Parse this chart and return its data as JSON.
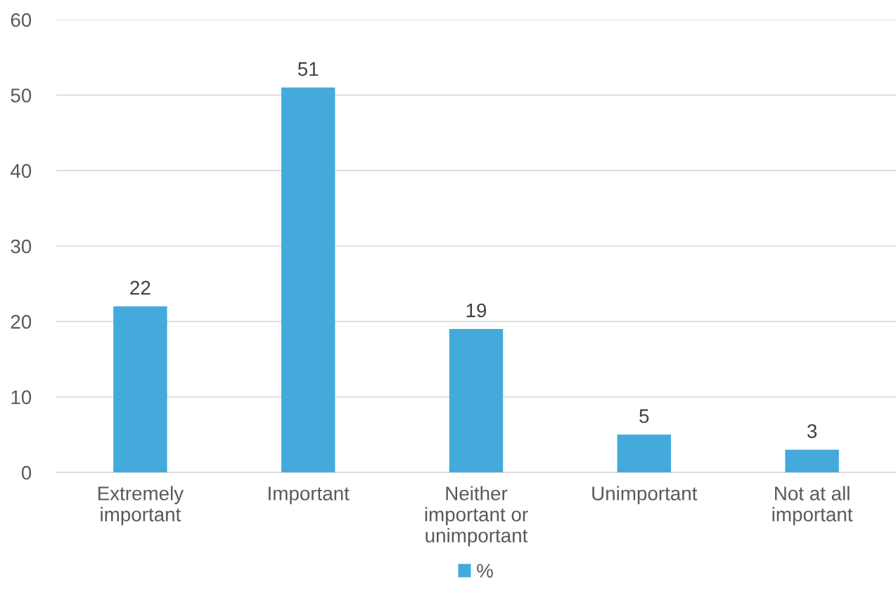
{
  "chart_data": {
    "type": "bar",
    "categories": [
      "Extremely\nimportant",
      "Important",
      "Neither\nimportant or\nunimportant",
      "Unimportant",
      "Not at all\nimportant"
    ],
    "series": [
      {
        "name": "%",
        "color": "#44aadb",
        "values": [
          22,
          51,
          19,
          5,
          3
        ]
      }
    ],
    "ylim": [
      0,
      60
    ],
    "yticks": [
      0,
      10,
      20,
      30,
      40,
      50,
      60
    ],
    "grid": "y",
    "legend": "bottom",
    "data_labels": true
  }
}
